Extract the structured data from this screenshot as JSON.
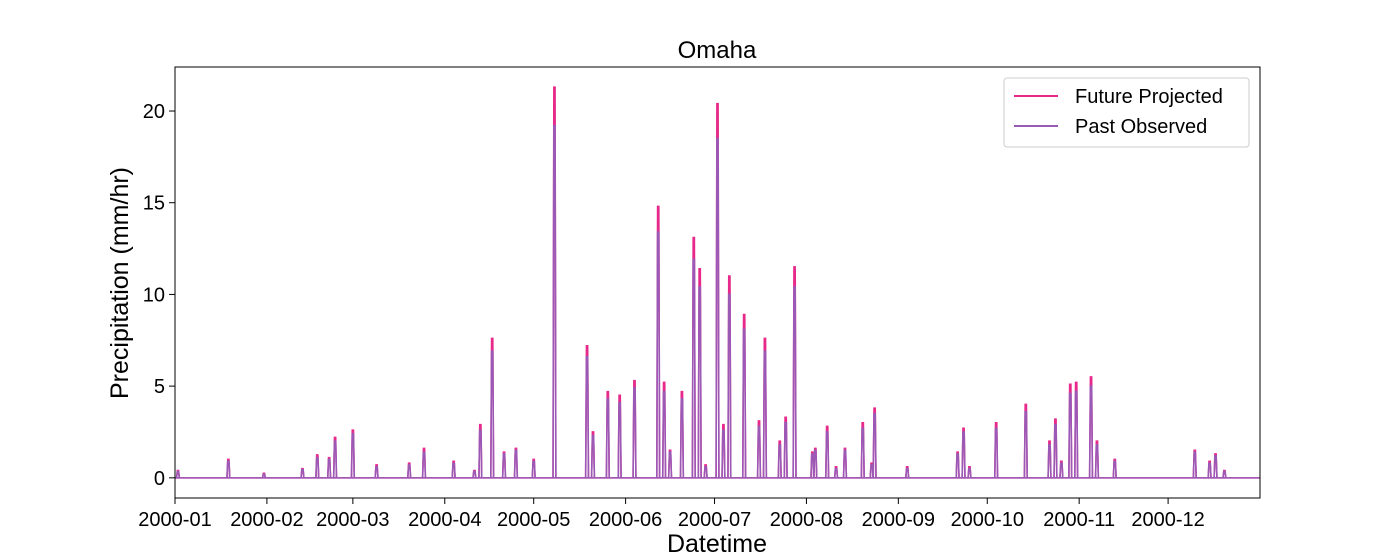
{
  "chart_data": {
    "type": "line",
    "title": "Omaha",
    "xlabel": "Datetime",
    "ylabel": "Precipitation (mm/hr)",
    "x_range": [
      "2000-01-01",
      "2000-12-31"
    ],
    "ylim": [
      -1.1,
      22.4
    ],
    "x_ticks": [
      "2000-01",
      "2000-02",
      "2000-03",
      "2000-04",
      "2000-05",
      "2000-06",
      "2000-07",
      "2000-08",
      "2000-09",
      "2000-10",
      "2000-11",
      "2000-12"
    ],
    "y_ticks": [
      0,
      5,
      10,
      15,
      20
    ],
    "grid": false,
    "legend_position": "top-right",
    "series": [
      {
        "name": "Future Projected",
        "color": "#e7298a",
        "points": [
          [
            "2000-01-02",
            0.4
          ],
          [
            "2000-01-19",
            1.0
          ],
          [
            "2000-01-31",
            0.25
          ],
          [
            "2000-02-13",
            0.5
          ],
          [
            "2000-02-18",
            1.25
          ],
          [
            "2000-02-22",
            1.1
          ],
          [
            "2000-02-24",
            2.2
          ],
          [
            "2000-03-01",
            2.6
          ],
          [
            "2000-03-09",
            0.7
          ],
          [
            "2000-03-20",
            0.8
          ],
          [
            "2000-03-25",
            1.6
          ],
          [
            "2000-04-04",
            0.9
          ],
          [
            "2000-04-11",
            0.4
          ],
          [
            "2000-04-13",
            2.9
          ],
          [
            "2000-04-17",
            7.6
          ],
          [
            "2000-04-21",
            1.4
          ],
          [
            "2000-04-25",
            1.6
          ],
          [
            "2000-05-01",
            1.0
          ],
          [
            "2000-05-08",
            21.3
          ],
          [
            "2000-05-19",
            7.2
          ],
          [
            "2000-05-21",
            2.5
          ],
          [
            "2000-05-26",
            4.7
          ],
          [
            "2000-05-30",
            4.5
          ],
          [
            "2000-06-04",
            5.3
          ],
          [
            "2000-06-12",
            14.8
          ],
          [
            "2000-06-14",
            5.2
          ],
          [
            "2000-06-16",
            1.5
          ],
          [
            "2000-06-20",
            4.7
          ],
          [
            "2000-06-24",
            13.1
          ],
          [
            "2000-06-26",
            11.4
          ],
          [
            "2000-06-28",
            0.7
          ],
          [
            "2000-07-02",
            20.4
          ],
          [
            "2000-07-04",
            2.9
          ],
          [
            "2000-07-06",
            11.0
          ],
          [
            "2000-07-11",
            8.9
          ],
          [
            "2000-07-16",
            3.1
          ],
          [
            "2000-07-18",
            7.6
          ],
          [
            "2000-07-23",
            2.0
          ],
          [
            "2000-07-25",
            3.3
          ],
          [
            "2000-07-28",
            11.5
          ],
          [
            "2000-08-03",
            1.4
          ],
          [
            "2000-08-04",
            1.6
          ],
          [
            "2000-08-08",
            2.8
          ],
          [
            "2000-08-11",
            0.6
          ],
          [
            "2000-08-14",
            1.6
          ],
          [
            "2000-08-20",
            3.0
          ],
          [
            "2000-08-23",
            0.8
          ],
          [
            "2000-08-24",
            3.8
          ],
          [
            "2000-09-04",
            0.6
          ],
          [
            "2000-09-21",
            1.4
          ],
          [
            "2000-09-23",
            2.7
          ],
          [
            "2000-09-25",
            0.6
          ],
          [
            "2000-10-04",
            3.0
          ],
          [
            "2000-10-14",
            4.0
          ],
          [
            "2000-10-22",
            2.0
          ],
          [
            "2000-10-24",
            3.2
          ],
          [
            "2000-10-26",
            0.9
          ],
          [
            "2000-10-29",
            5.1
          ],
          [
            "2000-10-31",
            5.2
          ],
          [
            "2000-11-05",
            5.5
          ],
          [
            "2000-11-07",
            2.0
          ],
          [
            "2000-11-13",
            1.0
          ],
          [
            "2000-12-10",
            1.5
          ],
          [
            "2000-12-15",
            0.9
          ],
          [
            "2000-12-17",
            1.3
          ],
          [
            "2000-12-20",
            0.4
          ]
        ]
      },
      {
        "name": "Past Observed",
        "color": "#9b59b6",
        "points": [
          [
            "2000-01-02",
            0.35
          ],
          [
            "2000-01-19",
            0.9
          ],
          [
            "2000-01-31",
            0.2
          ],
          [
            "2000-02-13",
            0.45
          ],
          [
            "2000-02-18",
            1.1
          ],
          [
            "2000-02-22",
            1.0
          ],
          [
            "2000-02-24",
            2.0
          ],
          [
            "2000-03-01",
            2.4
          ],
          [
            "2000-03-09",
            0.6
          ],
          [
            "2000-03-20",
            0.7
          ],
          [
            "2000-03-25",
            1.4
          ],
          [
            "2000-04-04",
            0.8
          ],
          [
            "2000-04-11",
            0.35
          ],
          [
            "2000-04-13",
            2.6
          ],
          [
            "2000-04-17",
            6.9
          ],
          [
            "2000-04-21",
            1.3
          ],
          [
            "2000-04-25",
            1.5
          ],
          [
            "2000-05-01",
            0.9
          ],
          [
            "2000-05-08",
            19.2
          ],
          [
            "2000-05-19",
            6.6
          ],
          [
            "2000-05-21",
            2.3
          ],
          [
            "2000-05-26",
            4.3
          ],
          [
            "2000-05-30",
            4.1
          ],
          [
            "2000-06-04",
            4.9
          ],
          [
            "2000-06-12",
            13.4
          ],
          [
            "2000-06-14",
            4.7
          ],
          [
            "2000-06-16",
            1.4
          ],
          [
            "2000-06-20",
            4.3
          ],
          [
            "2000-06-24",
            11.9
          ],
          [
            "2000-06-26",
            10.4
          ],
          [
            "2000-06-28",
            0.6
          ],
          [
            "2000-07-02",
            18.5
          ],
          [
            "2000-07-04",
            2.6
          ],
          [
            "2000-07-06",
            10.0
          ],
          [
            "2000-07-11",
            8.1
          ],
          [
            "2000-07-16",
            2.8
          ],
          [
            "2000-07-18",
            6.9
          ],
          [
            "2000-07-23",
            1.8
          ],
          [
            "2000-07-25",
            3.0
          ],
          [
            "2000-07-28",
            10.4
          ],
          [
            "2000-08-03",
            1.3
          ],
          [
            "2000-08-04",
            1.5
          ],
          [
            "2000-08-08",
            2.5
          ],
          [
            "2000-08-11",
            0.5
          ],
          [
            "2000-08-14",
            1.5
          ],
          [
            "2000-08-20",
            2.7
          ],
          [
            "2000-08-23",
            0.7
          ],
          [
            "2000-08-24",
            3.5
          ],
          [
            "2000-09-04",
            0.5
          ],
          [
            "2000-09-21",
            1.3
          ],
          [
            "2000-09-23",
            2.5
          ],
          [
            "2000-09-25",
            0.5
          ],
          [
            "2000-10-04",
            2.7
          ],
          [
            "2000-10-14",
            3.6
          ],
          [
            "2000-10-22",
            1.8
          ],
          [
            "2000-10-24",
            2.9
          ],
          [
            "2000-10-26",
            0.8
          ],
          [
            "2000-10-29",
            4.6
          ],
          [
            "2000-10-31",
            4.7
          ],
          [
            "2000-11-05",
            5.0
          ],
          [
            "2000-11-07",
            1.8
          ],
          [
            "2000-11-13",
            0.9
          ],
          [
            "2000-12-10",
            1.4
          ],
          [
            "2000-12-15",
            0.8
          ],
          [
            "2000-12-17",
            1.2
          ],
          [
            "2000-12-20",
            0.35
          ]
        ]
      }
    ]
  }
}
